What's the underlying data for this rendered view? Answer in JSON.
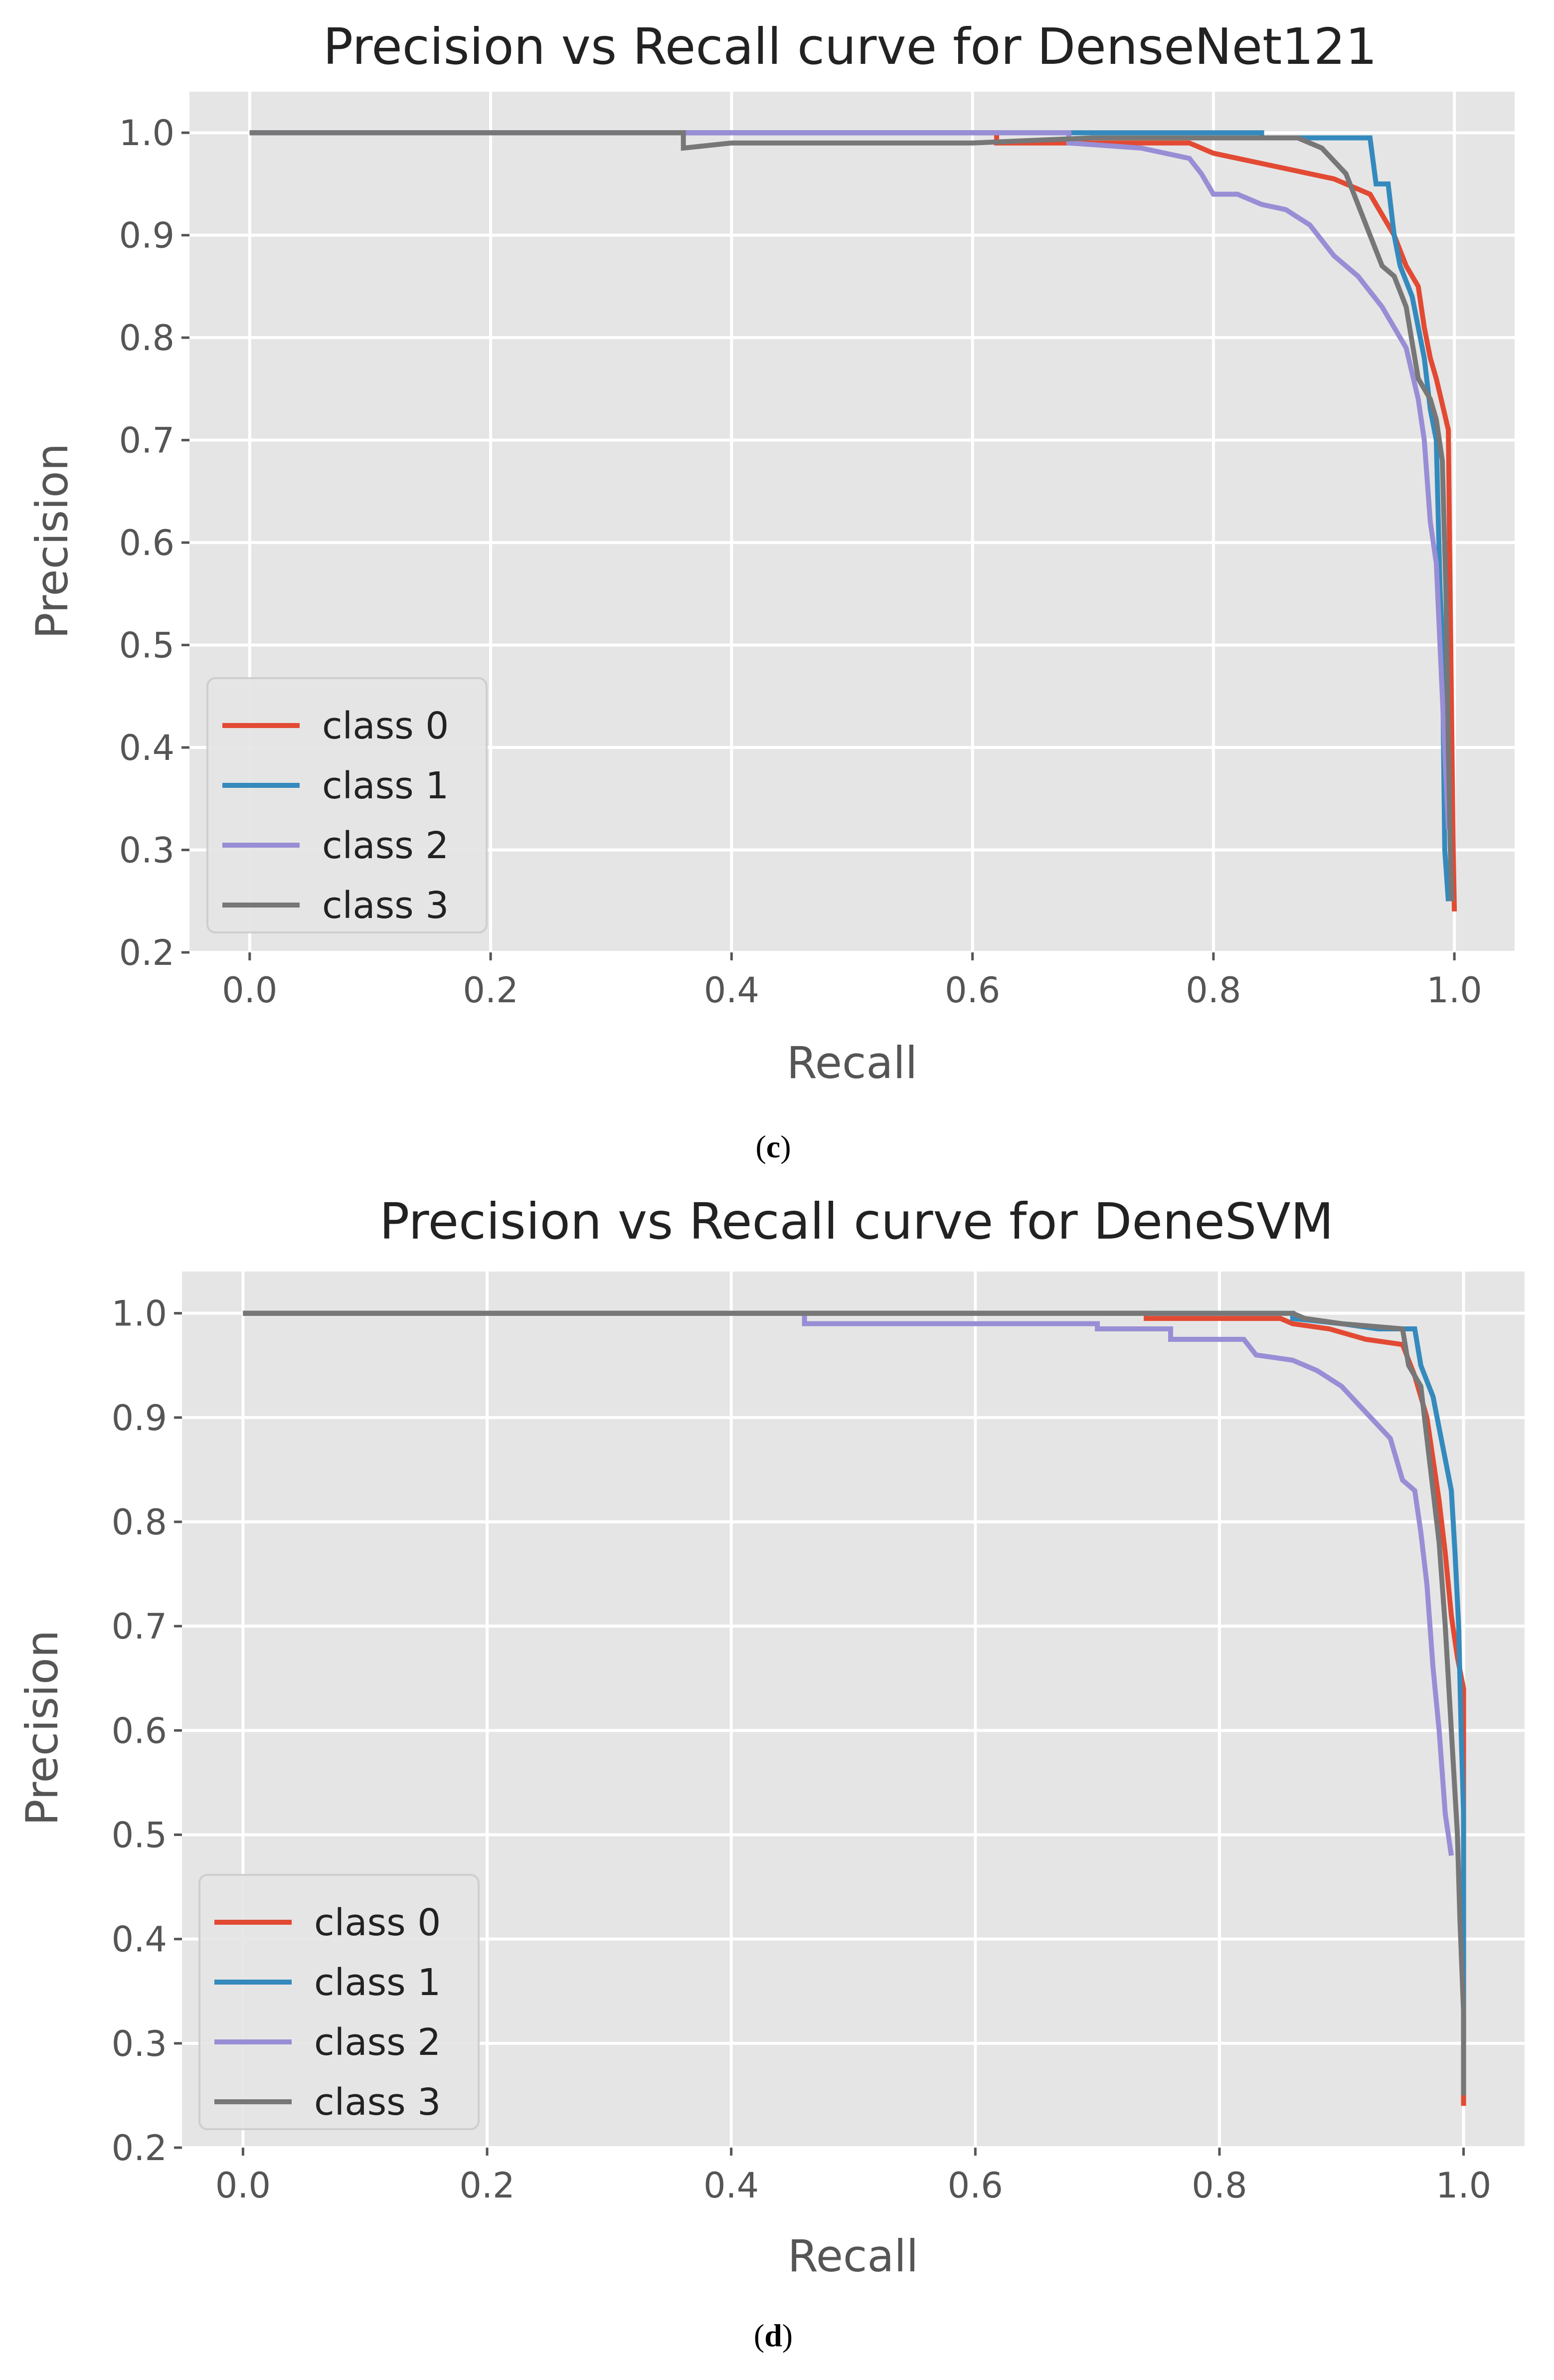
{
  "chart_data": [
    {
      "type": "line",
      "title": "Precision vs Recall curve for DenseNet121",
      "xlabel": "Recall",
      "ylabel": "Precision",
      "xlim": [
        -0.05,
        1.05
      ],
      "ylim": [
        0.2,
        1.04
      ],
      "xticks": [
        0.0,
        0.2,
        0.4,
        0.6,
        0.8,
        1.0
      ],
      "xtick_labels": [
        "0.0",
        "0.2",
        "0.4",
        "0.6",
        "0.8",
        "1.0"
      ],
      "yticks": [
        0.2,
        0.3,
        0.4,
        0.5,
        0.6,
        0.7,
        0.8,
        0.9,
        1.0
      ],
      "ytick_labels": [
        "0.2",
        "0.3",
        "0.4",
        "0.5",
        "0.6",
        "0.7",
        "0.8",
        "0.9",
        "1.0"
      ],
      "grid": true,
      "legend_position": "lower-left",
      "caption": "c",
      "series": [
        {
          "name": "class 0",
          "color": "#E24A33",
          "points": [
            [
              0.0,
              1.0
            ],
            [
              0.62,
              1.0
            ],
            [
              0.62,
              0.99
            ],
            [
              0.78,
              0.99
            ],
            [
              0.8,
              0.98
            ],
            [
              0.86,
              0.965
            ],
            [
              0.9,
              0.955
            ],
            [
              0.93,
              0.94
            ],
            [
              0.95,
              0.9
            ],
            [
              0.96,
              0.87
            ],
            [
              0.97,
              0.85
            ],
            [
              0.975,
              0.81
            ],
            [
              0.98,
              0.78
            ],
            [
              0.985,
              0.76
            ],
            [
              0.99,
              0.735
            ],
            [
              0.995,
              0.71
            ],
            [
              0.996,
              0.6
            ],
            [
              0.997,
              0.5
            ],
            [
              0.998,
              0.4
            ],
            [
              0.999,
              0.3
            ],
            [
              1.0,
              0.24
            ]
          ]
        },
        {
          "name": "class 1",
          "color": "#348ABD",
          "points": [
            [
              0.0,
              1.0
            ],
            [
              0.84,
              1.0
            ],
            [
              0.84,
              0.995
            ],
            [
              0.93,
              0.995
            ],
            [
              0.935,
              0.95
            ],
            [
              0.945,
              0.95
            ],
            [
              0.95,
              0.9
            ],
            [
              0.955,
              0.87
            ],
            [
              0.965,
              0.84
            ],
            [
              0.975,
              0.78
            ],
            [
              0.98,
              0.73
            ],
            [
              0.985,
              0.7
            ],
            [
              0.988,
              0.56
            ],
            [
              0.99,
              0.5
            ],
            [
              0.992,
              0.3
            ],
            [
              0.995,
              0.25
            ]
          ]
        },
        {
          "name": "class 2",
          "color": "#988ED5",
          "points": [
            [
              0.0,
              1.0
            ],
            [
              0.68,
              1.0
            ],
            [
              0.68,
              0.99
            ],
            [
              0.74,
              0.985
            ],
            [
              0.78,
              0.975
            ],
            [
              0.79,
              0.96
            ],
            [
              0.8,
              0.94
            ],
            [
              0.82,
              0.94
            ],
            [
              0.84,
              0.93
            ],
            [
              0.86,
              0.925
            ],
            [
              0.88,
              0.91
            ],
            [
              0.9,
              0.88
            ],
            [
              0.92,
              0.86
            ],
            [
              0.94,
              0.83
            ],
            [
              0.96,
              0.79
            ],
            [
              0.97,
              0.74
            ],
            [
              0.975,
              0.7
            ],
            [
              0.98,
              0.62
            ],
            [
              0.985,
              0.58
            ],
            [
              0.99,
              0.45
            ],
            [
              0.995,
              0.32
            ]
          ]
        },
        {
          "name": "class 3",
          "color": "#777777",
          "points": [
            [
              0.0,
              1.0
            ],
            [
              0.36,
              1.0
            ],
            [
              0.36,
              0.985
            ],
            [
              0.4,
              0.99
            ],
            [
              0.6,
              0.99
            ],
            [
              0.7,
              0.995
            ],
            [
              0.87,
              0.995
            ],
            [
              0.89,
              0.985
            ],
            [
              0.91,
              0.96
            ],
            [
              0.93,
              0.9
            ],
            [
              0.94,
              0.87
            ],
            [
              0.95,
              0.86
            ],
            [
              0.96,
              0.83
            ],
            [
              0.97,
              0.76
            ],
            [
              0.975,
              0.75
            ],
            [
              0.98,
              0.74
            ],
            [
              0.985,
              0.72
            ],
            [
              0.99,
              0.68
            ],
            [
              0.993,
              0.55
            ],
            [
              0.995,
              0.4
            ],
            [
              0.997,
              0.28
            ],
            [
              0.998,
              0.25
            ]
          ]
        }
      ]
    },
    {
      "type": "line",
      "title": "Precision vs Recall curve for DeneSVM",
      "xlabel": "Recall",
      "ylabel": "Precision",
      "xlim": [
        -0.05,
        1.05
      ],
      "ylim": [
        0.2,
        1.04
      ],
      "xticks": [
        0.0,
        0.2,
        0.4,
        0.6,
        0.8,
        1.0
      ],
      "xtick_labels": [
        "0.0",
        "0.2",
        "0.4",
        "0.6",
        "0.8",
        "1.0"
      ],
      "yticks": [
        0.2,
        0.3,
        0.4,
        0.5,
        0.6,
        0.7,
        0.8,
        0.9,
        1.0
      ],
      "ytick_labels": [
        "0.2",
        "0.3",
        "0.4",
        "0.5",
        "0.6",
        "0.7",
        "0.8",
        "0.9",
        "1.0"
      ],
      "grid": true,
      "legend_position": "lower-left",
      "caption": "d",
      "series": [
        {
          "name": "class 0",
          "color": "#E24A33",
          "points": [
            [
              0.0,
              1.0
            ],
            [
              0.74,
              1.0
            ],
            [
              0.74,
              0.995
            ],
            [
              0.85,
              0.995
            ],
            [
              0.86,
              0.99
            ],
            [
              0.89,
              0.985
            ],
            [
              0.92,
              0.975
            ],
            [
              0.95,
              0.97
            ],
            [
              0.96,
              0.94
            ],
            [
              0.97,
              0.9
            ],
            [
              0.975,
              0.86
            ],
            [
              0.98,
              0.82
            ],
            [
              0.985,
              0.77
            ],
            [
              0.99,
              0.71
            ],
            [
              0.995,
              0.67
            ],
            [
              1.0,
              0.64
            ],
            [
              1.0,
              0.55
            ],
            [
              1.0,
              0.45
            ],
            [
              1.0,
              0.35
            ],
            [
              1.0,
              0.24
            ]
          ]
        },
        {
          "name": "class 1",
          "color": "#348ABD",
          "points": [
            [
              0.0,
              1.0
            ],
            [
              0.86,
              1.0
            ],
            [
              0.86,
              0.995
            ],
            [
              0.9,
              0.99
            ],
            [
              0.93,
              0.985
            ],
            [
              0.96,
              0.985
            ],
            [
              0.965,
              0.95
            ],
            [
              0.975,
              0.92
            ],
            [
              0.98,
              0.89
            ],
            [
              0.985,
              0.86
            ],
            [
              0.99,
              0.83
            ],
            [
              0.993,
              0.77
            ],
            [
              0.996,
              0.7
            ],
            [
              0.998,
              0.6
            ],
            [
              1.0,
              0.52
            ],
            [
              1.0,
              0.4
            ],
            [
              1.0,
              0.3
            ]
          ]
        },
        {
          "name": "class 2",
          "color": "#988ED5",
          "points": [
            [
              0.0,
              1.0
            ],
            [
              0.46,
              1.0
            ],
            [
              0.46,
              0.99
            ],
            [
              0.7,
              0.99
            ],
            [
              0.7,
              0.985
            ],
            [
              0.76,
              0.985
            ],
            [
              0.76,
              0.975
            ],
            [
              0.82,
              0.975
            ],
            [
              0.83,
              0.96
            ],
            [
              0.86,
              0.955
            ],
            [
              0.88,
              0.945
            ],
            [
              0.9,
              0.93
            ],
            [
              0.92,
              0.905
            ],
            [
              0.94,
              0.88
            ],
            [
              0.95,
              0.84
            ],
            [
              0.96,
              0.83
            ],
            [
              0.965,
              0.79
            ],
            [
              0.97,
              0.74
            ],
            [
              0.975,
              0.66
            ],
            [
              0.98,
              0.6
            ],
            [
              0.985,
              0.52
            ],
            [
              0.99,
              0.48
            ]
          ]
        },
        {
          "name": "class 3",
          "color": "#777777",
          "points": [
            [
              0.0,
              1.0
            ],
            [
              0.86,
              1.0
            ],
            [
              0.87,
              0.995
            ],
            [
              0.9,
              0.99
            ],
            [
              0.95,
              0.985
            ],
            [
              0.955,
              0.95
            ],
            [
              0.965,
              0.93
            ],
            [
              0.97,
              0.88
            ],
            [
              0.975,
              0.83
            ],
            [
              0.98,
              0.78
            ],
            [
              0.985,
              0.7
            ],
            [
              0.99,
              0.6
            ],
            [
              0.995,
              0.5
            ],
            [
              0.997,
              0.42
            ],
            [
              1.0,
              0.33
            ],
            [
              1.0,
              0.25
            ]
          ]
        }
      ]
    }
  ]
}
